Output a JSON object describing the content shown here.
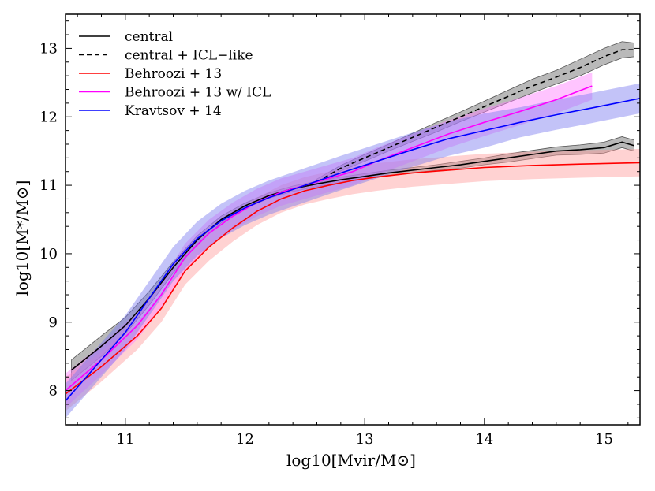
{
  "chart_data": {
    "type": "line",
    "xlabel": "log10[Mvir/M⊙]",
    "ylabel": "log10[M*/M⊙]",
    "xlim": [
      10.5,
      15.3
    ],
    "ylim": [
      7.5,
      13.5
    ],
    "x_ticks": [
      "11",
      "12",
      "13",
      "14",
      "15"
    ],
    "y_ticks": [
      "8",
      "9",
      "10",
      "11",
      "12",
      "13"
    ],
    "grid": false,
    "legend_placement": "top-left",
    "series": [
      {
        "name": "central",
        "color": "#000000",
        "dash": "solid",
        "x": [
          10.55,
          10.8,
          11.0,
          11.2,
          11.4,
          11.6,
          11.8,
          12.0,
          12.2,
          12.4,
          12.6,
          12.8,
          13.0,
          13.2,
          13.4,
          13.6,
          13.8,
          14.0,
          14.2,
          14.4,
          14.6,
          14.8,
          15.0,
          15.15,
          15.25
        ],
        "y": [
          8.3,
          8.65,
          8.95,
          9.35,
          9.8,
          10.2,
          10.5,
          10.7,
          10.85,
          10.95,
          11.02,
          11.08,
          11.13,
          11.18,
          11.22,
          11.26,
          11.3,
          11.35,
          11.4,
          11.45,
          11.5,
          11.52,
          11.55,
          11.63,
          11.58
        ],
        "band": [
          0.15,
          0.15,
          0.12,
          0.1,
          0.08,
          0.06,
          0.05,
          0.04,
          0.04,
          0.04,
          0.04,
          0.04,
          0.04,
          0.04,
          0.04,
          0.04,
          0.05,
          0.05,
          0.06,
          0.06,
          0.06,
          0.07,
          0.08,
          0.08,
          0.08
        ]
      },
      {
        "name": "central + ICL−like",
        "color": "#000000",
        "dash": "dashed",
        "x": [
          12.6,
          12.8,
          13.0,
          13.2,
          13.4,
          13.6,
          13.8,
          14.0,
          14.2,
          14.4,
          14.6,
          14.8,
          15.0,
          15.15,
          15.25
        ],
        "y": [
          11.05,
          11.25,
          11.4,
          11.55,
          11.7,
          11.85,
          12.0,
          12.15,
          12.3,
          12.45,
          12.58,
          12.72,
          12.88,
          12.98,
          12.98
        ],
        "band": [
          0.04,
          0.04,
          0.05,
          0.05,
          0.06,
          0.07,
          0.07,
          0.08,
          0.09,
          0.1,
          0.1,
          0.12,
          0.12,
          0.12,
          0.1
        ]
      },
      {
        "name": "Behroozi + 13",
        "color": "#ff0000",
        "fill": "#ff9c9c",
        "dash": "solid",
        "x": [
          10.5,
          10.8,
          11.1,
          11.3,
          11.5,
          11.7,
          11.9,
          12.1,
          12.3,
          12.5,
          12.7,
          12.9,
          13.1,
          13.4,
          13.7,
          14.0,
          14.4,
          14.8,
          15.3
        ],
        "y": [
          7.95,
          8.35,
          8.8,
          9.2,
          9.75,
          10.1,
          10.38,
          10.62,
          10.8,
          10.92,
          11.0,
          11.07,
          11.12,
          11.18,
          11.22,
          11.26,
          11.29,
          11.31,
          11.33
        ],
        "band": [
          0.25,
          0.22,
          0.2,
          0.2,
          0.2,
          0.2,
          0.2,
          0.2,
          0.2,
          0.2,
          0.2,
          0.2,
          0.2,
          0.2,
          0.2,
          0.2,
          0.2,
          0.2,
          0.2
        ]
      },
      {
        "name": "Behroozi + 13 w/ ICL",
        "color": "#ff00ff",
        "fill": "#ff7cff",
        "dash": "solid",
        "x": [
          10.5,
          10.8,
          11.1,
          11.3,
          11.5,
          11.7,
          11.9,
          12.1,
          12.3,
          12.5,
          12.7,
          12.9,
          13.1,
          13.4,
          13.7,
          14.0,
          14.3,
          14.6,
          14.9
        ],
        "y": [
          8.0,
          8.45,
          8.95,
          9.4,
          9.95,
          10.3,
          10.55,
          10.75,
          10.9,
          11.0,
          11.1,
          11.2,
          11.35,
          11.55,
          11.75,
          11.92,
          12.08,
          12.25,
          12.45
        ],
        "band": [
          0.25,
          0.22,
          0.2,
          0.2,
          0.2,
          0.2,
          0.2,
          0.2,
          0.2,
          0.2,
          0.2,
          0.2,
          0.2,
          0.2,
          0.2,
          0.2,
          0.2,
          0.2,
          0.2
        ]
      },
      {
        "name": "Kravtsov + 14",
        "color": "#0000ff",
        "fill": "#7a7af0",
        "dash": "solid",
        "x": [
          10.5,
          10.8,
          11.0,
          11.2,
          11.4,
          11.6,
          11.8,
          12.0,
          12.2,
          12.5,
          12.8,
          13.1,
          13.4,
          13.7,
          14.0,
          14.3,
          14.6,
          14.9,
          15.3
        ],
        "y": [
          7.85,
          8.45,
          8.85,
          9.35,
          9.85,
          10.22,
          10.48,
          10.67,
          10.82,
          11.0,
          11.18,
          11.35,
          11.52,
          11.68,
          11.8,
          11.92,
          12.03,
          12.13,
          12.27
        ],
        "band": [
          0.25,
          0.25,
          0.25,
          0.25,
          0.25,
          0.25,
          0.25,
          0.25,
          0.25,
          0.25,
          0.25,
          0.25,
          0.25,
          0.25,
          0.25,
          0.22,
          0.22,
          0.22,
          0.22
        ]
      }
    ]
  }
}
